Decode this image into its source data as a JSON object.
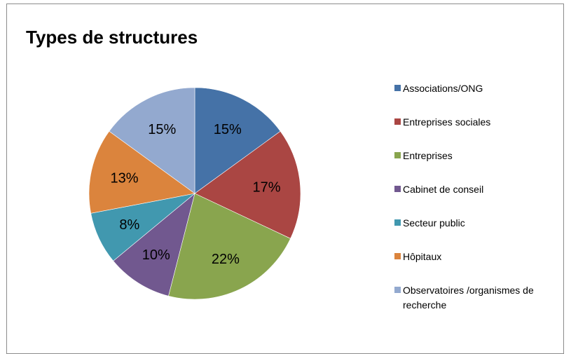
{
  "chart_data": {
    "type": "pie",
    "title": "Types de structures",
    "categories": [
      "Associations/ONG",
      "Entreprises sociales",
      "Entreprises",
      "Cabinet de conseil",
      "Secteur public",
      "Hôpitaux",
      "Observatoires /organismes de recherche"
    ],
    "values": [
      15,
      17,
      22,
      10,
      8,
      13,
      15
    ],
    "data_labels": [
      "15%",
      "17%",
      "22%",
      "10%",
      "8%",
      "13%",
      "15%"
    ],
    "colors": [
      "#4572a7",
      "#aa4643",
      "#89a54e",
      "#71588f",
      "#4198af",
      "#db843d",
      "#93a9cf"
    ],
    "legend_position": "right",
    "start_angle_deg": 0,
    "direction": "clockwise"
  }
}
